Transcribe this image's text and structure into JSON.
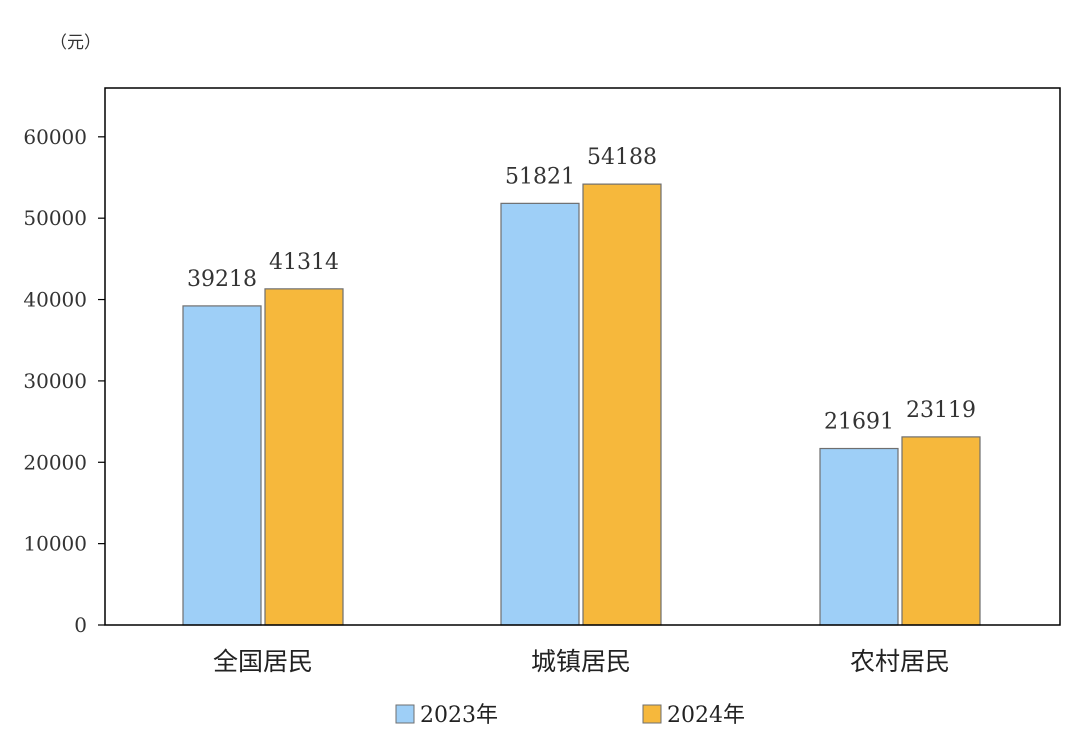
{
  "chart_data": {
    "type": "bar",
    "unit_label": "（元）",
    "categories": [
      "全国居民",
      "城镇居民",
      "农村居民"
    ],
    "series": [
      {
        "name": "2023年",
        "color": "#9ecff7",
        "values": [
          39218,
          51821,
          21691
        ]
      },
      {
        "name": "2024年",
        "color": "#f6b83c",
        "values": [
          41314,
          54188,
          23119
        ]
      }
    ],
    "ylim": [
      0,
      66000
    ],
    "yticks": [
      0,
      10000,
      20000,
      30000,
      40000,
      50000,
      60000
    ],
    "grid": false,
    "legend_position": "bottom"
  }
}
